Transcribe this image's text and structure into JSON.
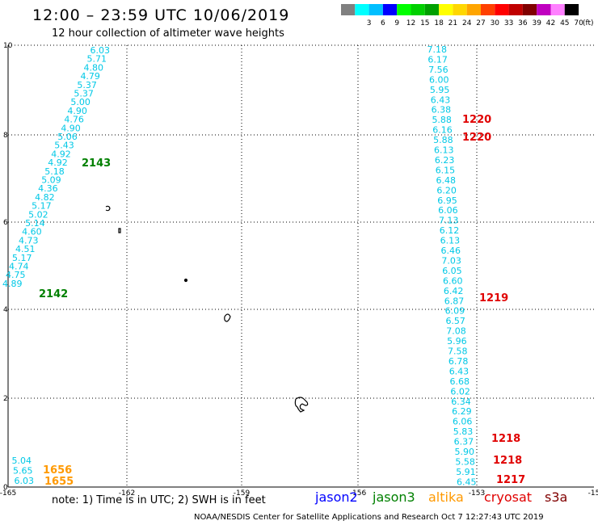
{
  "title": "12:00 – 23:59 UTC 10/06/2019",
  "subtitle": "12 hour collection of altimeter wave heights",
  "scale": {
    "items": [
      {
        "color": "#808080",
        "label": ""
      },
      {
        "color": "#00ffff",
        "label": "3"
      },
      {
        "color": "#00bfff",
        "label": "6"
      },
      {
        "color": "#0000ff",
        "label": "9"
      },
      {
        "color": "#00ff00",
        "label": "12"
      },
      {
        "color": "#00d000",
        "label": "15"
      },
      {
        "color": "#00a000",
        "label": "18"
      },
      {
        "color": "#ffff00",
        "label": "21"
      },
      {
        "color": "#ffd700",
        "label": "24"
      },
      {
        "color": "#ffa500",
        "label": "27"
      },
      {
        "color": "#ff4000",
        "label": "30"
      },
      {
        "color": "#ff0000",
        "label": "33"
      },
      {
        "color": "#c00000",
        "label": "36"
      },
      {
        "color": "#800000",
        "label": "39"
      },
      {
        "color": "#c000c0",
        "label": "42"
      },
      {
        "color": "#ff80ff",
        "label": "45"
      },
      {
        "color": "#000000",
        "label": "70"
      }
    ],
    "unit": "(ft)"
  },
  "axes": {
    "x_labels": [
      "-165",
      "-162",
      "-159",
      "-156",
      "-153",
      "-15"
    ],
    "y_labels": [
      "0",
      "2",
      "4",
      "6",
      "8",
      "10"
    ]
  },
  "tracks": [
    {
      "color": "#00c8e6",
      "align": "end",
      "values": [
        "6.03",
        "5.71",
        "4.80",
        "4.79",
        "5.37",
        "5.37",
        "5.00",
        "4.90",
        "4.76",
        "4.90",
        "5.06",
        "5.43",
        "4.92",
        "4.92",
        "5.18",
        "5.09",
        "4.36",
        "4.82",
        "5.17",
        "5.02",
        "5.14",
        "4.60",
        "4.73",
        "4.51",
        "5.17",
        "4.74",
        "4.75",
        "4.89"
      ]
    },
    {
      "color": "#00c8e6",
      "align": "end",
      "values": [
        "7.18",
        "6.17",
        "7.56",
        "6.00",
        "5.95",
        "6.43",
        "6.38",
        "5.88",
        "6.16",
        "5.88",
        "6.13",
        "6.23",
        "6.15",
        "6.48",
        "6.20",
        "6.95",
        "6.06",
        "7.13",
        "6.12",
        "6.13",
        "6.46",
        "7.03",
        "6.05",
        "6.60",
        "6.42",
        "6.87",
        "6.09",
        "6.57",
        "7.08",
        "5.96",
        "7.58",
        "6.78",
        "6.43",
        "6.68",
        "6.02",
        "6.34",
        "6.29",
        "6.06",
        "5.83",
        "6.37",
        "5.90",
        "5.58",
        "5.91",
        "6.45"
      ]
    },
    {
      "color": "#00c8e6",
      "align": "end",
      "values": [
        "5.04",
        "5.65",
        "6.03"
      ]
    }
  ],
  "pass_labels": [
    {
      "text": "2143",
      "color": "#008000"
    },
    {
      "text": "2142",
      "color": "#008000"
    },
    {
      "text": "1220",
      "color": "#e00000"
    },
    {
      "text": "1220",
      "color": "#e00000"
    },
    {
      "text": "1219",
      "color": "#e00000"
    },
    {
      "text": "1218",
      "color": "#e00000"
    },
    {
      "text": "1218",
      "color": "#e00000"
    },
    {
      "text": "1217",
      "color": "#e00000"
    },
    {
      "text": "1656",
      "color": "#ff9900"
    },
    {
      "text": "1655",
      "color": "#ff9900"
    }
  ],
  "note": "note:  1) Time is in UTC;  2) SWH is in feet",
  "satellites": [
    {
      "name": "jason2",
      "color": "#0000ff"
    },
    {
      "name": "jason3",
      "color": "#008000"
    },
    {
      "name": "altika",
      "color": "#ff9900"
    },
    {
      "name": "cryosat",
      "color": "#e00000"
    },
    {
      "name": "s3a",
      "color": "#800000"
    }
  ],
  "footer": "NOAA/NESDIS Center for Satellite Applications and Research    Oct  7 12:27:43 UTC 2019"
}
